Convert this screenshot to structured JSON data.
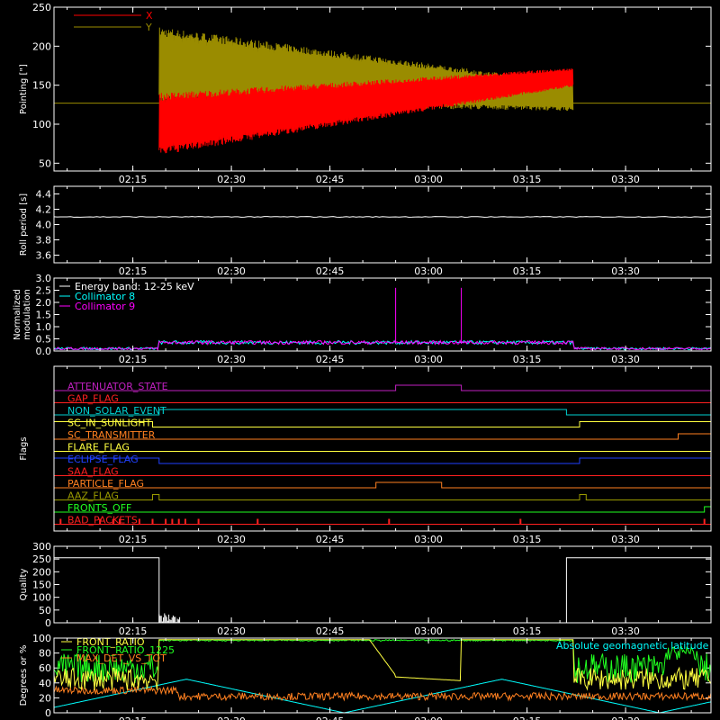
{
  "time_ticks": [
    "02:15",
    "02:30",
    "02:45",
    "03:00",
    "03:15",
    "03:30"
  ],
  "chart_data": [
    {
      "type": "line",
      "ylabel": "Pointing [\"]",
      "ylim": [
        40,
        250
      ],
      "yticks": [
        50,
        100,
        150,
        200,
        250
      ],
      "xlim": [
        "02:03",
        "03:43"
      ],
      "legend_placement": "top-left",
      "legend": [
        {
          "name": "X",
          "color": "#ff0000"
        },
        {
          "name": "Y",
          "color": "#9a8c00"
        }
      ],
      "series": [
        {
          "name": "X",
          "color": "#ff0000",
          "start": "02:19",
          "end": "03:22",
          "center_start": 100,
          "center_end": 160,
          "amplitude_start": 40,
          "amplitude_end": 12,
          "baseline": 127
        },
        {
          "name": "Y",
          "color": "#9a8c00",
          "start": "02:19",
          "end": "03:22",
          "center_start": 175,
          "center_end": 135,
          "amplitude_start": 50,
          "amplitude_end": 18,
          "baseline": 127
        }
      ]
    },
    {
      "type": "line",
      "ylabel": "Roll period [s]",
      "ylim": [
        3.5,
        4.5
      ],
      "yticks": [
        3.6,
        3.8,
        4.0,
        4.2,
        4.4
      ],
      "series": [
        {
          "name": "",
          "color": "#ffffff",
          "value": 4.1
        }
      ]
    },
    {
      "type": "line",
      "ylabel": "Normalized modulation",
      "ylim": [
        0.0,
        3.0
      ],
      "yticks": [
        0.0,
        0.5,
        1.0,
        1.5,
        2.0,
        2.5,
        3.0
      ],
      "legend_placement": "top-left",
      "legend": [
        {
          "name": "Energy band: 12-25 keV",
          "color": "#ffffff"
        },
        {
          "name": "Collimator 8",
          "color": "#00ffff"
        },
        {
          "name": "Collimator 9",
          "color": "#ff00ff"
        }
      ],
      "series": [
        {
          "name": "Collimator 8",
          "color": "#00ffff",
          "low": 0.1,
          "high": 0.35,
          "start": "02:19",
          "end": "03:22"
        },
        {
          "name": "Collimator 9",
          "color": "#ff00ff",
          "low": 0.1,
          "high": 0.35,
          "start": "02:19",
          "end": "03:22",
          "spikes": [
            [
              "02:55",
              2.6
            ],
            [
              "03:05",
              2.6
            ]
          ]
        }
      ]
    },
    {
      "type": "line",
      "ylabel": "Flags",
      "flags": [
        {
          "name": "ATTENUATOR_STATE",
          "color": "#c020c0",
          "segments": [
            [
              "02:55",
              "03:05"
            ]
          ]
        },
        {
          "name": "GAP_FLAG",
          "color": "#ff2020",
          "segments": []
        },
        {
          "name": "NON_SOLAR_EVENT",
          "color": "#00d0d0",
          "segments": [
            [
              "02:19",
              "03:21"
            ]
          ]
        },
        {
          "name": "SC_IN_SUNLIGHT",
          "color": "#ffff40",
          "segments": [
            [
              "02:03",
              "02:18"
            ],
            [
              "03:23",
              "03:43"
            ]
          ]
        },
        {
          "name": "SC_TRANSMITTER",
          "color": "#ff8020",
          "segments": [
            [
              "03:38",
              "03:43"
            ]
          ]
        },
        {
          "name": "FLARE_FLAG",
          "color": "#ffff40",
          "segments": []
        },
        {
          "name": "ECLIPSE_FLAG",
          "color": "#2040ff",
          "segments": [
            [
              "02:03",
              "02:19"
            ],
            [
              "03:23",
              "03:43"
            ]
          ]
        },
        {
          "name": "SAA_FLAG",
          "color": "#ff2020",
          "segments": []
        },
        {
          "name": "PARTICLE_FLAG",
          "color": "#ff8020",
          "segments": [
            [
              "02:52",
              "03:02"
            ]
          ]
        },
        {
          "name": "AAZ_FLAG",
          "color": "#9a9a00",
          "segments": [
            [
              "02:18",
              "02:19"
            ],
            [
              "03:23",
              "03:24"
            ]
          ]
        },
        {
          "name": "FRONTS_OFF",
          "color": "#20ff20",
          "segments": [
            [
              "03:42",
              "03:43"
            ]
          ]
        },
        {
          "name": "BAD_PACKETS",
          "color": "#ff2020",
          "ticks": [
            "02:04",
            "02:10",
            "02:12",
            "02:13",
            "02:16",
            "02:18",
            "02:20",
            "02:21",
            "02:22",
            "02:23",
            "02:25",
            "02:34",
            "02:54",
            "03:14",
            "03:42"
          ]
        }
      ]
    },
    {
      "type": "line",
      "ylabel": "Quality",
      "ylim": [
        0,
        300
      ],
      "yticks": [
        0,
        50,
        100,
        150,
        200,
        250,
        300
      ],
      "series": [
        {
          "name": "",
          "color": "#ffffff",
          "high": 255,
          "segments": [
            [
              "02:03",
              "02:19"
            ],
            [
              "03:21",
              "03:43"
            ]
          ]
        }
      ]
    },
    {
      "type": "line",
      "ylabel": "Degrees or %",
      "ylim": [
        0,
        100
      ],
      "yticks": [
        0,
        20,
        40,
        60,
        80,
        100
      ],
      "legend_placement": "top-left",
      "legend": [
        {
          "name": "FRONT_RATIO",
          "color": "#ffff40"
        },
        {
          "name": "FRONT_RATIO_1225",
          "color": "#20ff20"
        },
        {
          "name": "MAX_DET_VS_TOT",
          "color": "#ff8020"
        }
      ],
      "annotation": {
        "text": "Absolute geomagnetic latitude",
        "color": "#00ffff"
      },
      "series": [
        {
          "name": "FRONT_RATIO",
          "color": "#ffff40"
        },
        {
          "name": "FRONT_RATIO_1225",
          "color": "#20ff20"
        },
        {
          "name": "MAX_DET_VS_TOT",
          "color": "#ff8020"
        }
      ]
    }
  ]
}
